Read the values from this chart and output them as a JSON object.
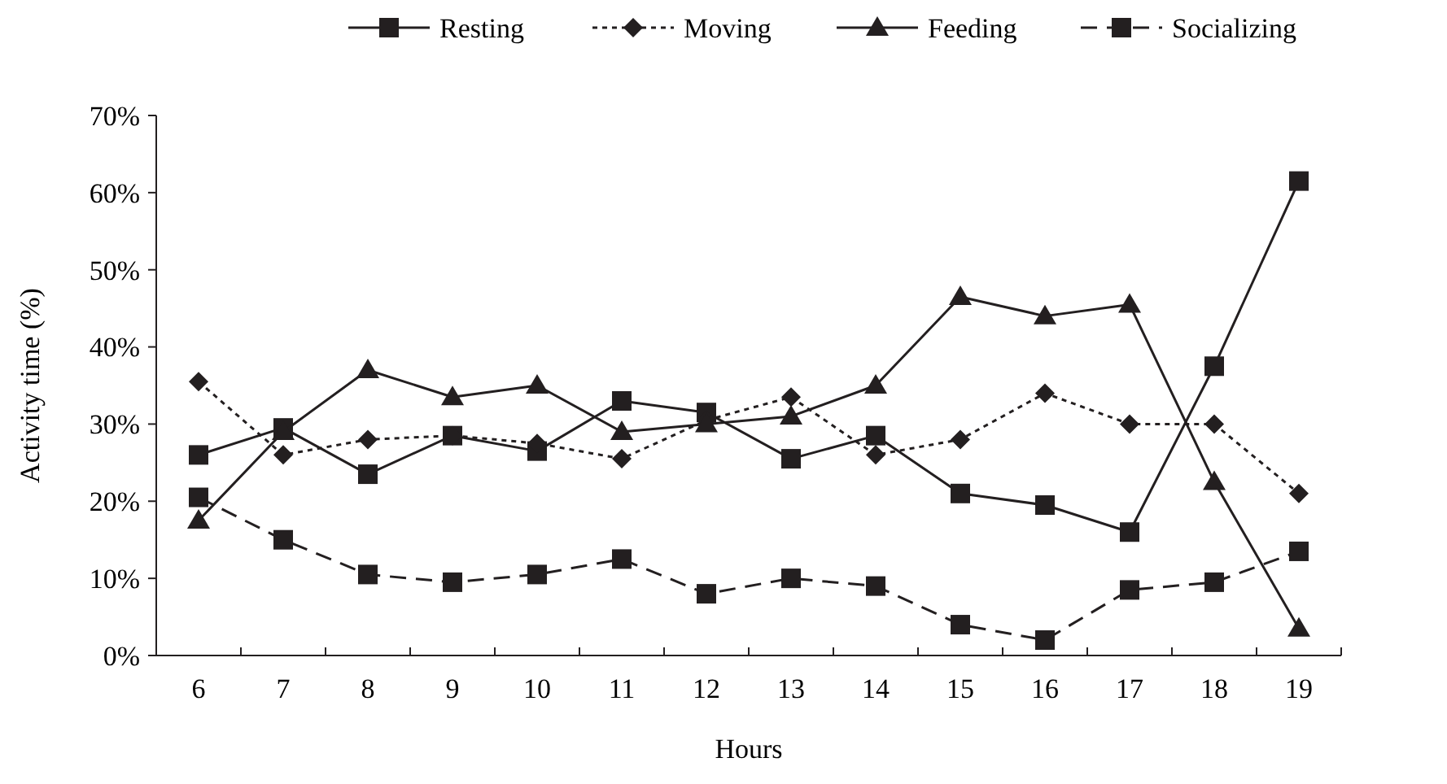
{
  "chart_data": {
    "type": "line",
    "xlabel": "Hours",
    "ylabel": "Activity time (%)",
    "categories": [
      "6",
      "7",
      "8",
      "9",
      "10",
      "11",
      "12",
      "13",
      "14",
      "15",
      "16",
      "17",
      "18",
      "19"
    ],
    "ylim": [
      0,
      70
    ],
    "yticks": [
      {
        "value": 0,
        "label": "0%"
      },
      {
        "value": 10,
        "label": "10%"
      },
      {
        "value": 20,
        "label": "20%"
      },
      {
        "value": 30,
        "label": "30%"
      },
      {
        "value": 40,
        "label": "40%"
      },
      {
        "value": 50,
        "label": "50%"
      },
      {
        "value": 60,
        "label": "60%"
      },
      {
        "value": 70,
        "label": "70%"
      }
    ],
    "grid": false,
    "legend": "top",
    "series": [
      {
        "name": "Resting",
        "color": "#231f20",
        "marker": "square",
        "line_style": "solid",
        "values": [
          26,
          29.5,
          23.5,
          28.5,
          26.5,
          33,
          31.5,
          25.5,
          28.5,
          21,
          19.5,
          16,
          37.5,
          61.5
        ]
      },
      {
        "name": "Moving",
        "color": "#231f20",
        "marker": "diamond",
        "line_style": "dotted",
        "values": [
          35.5,
          26,
          28,
          28.5,
          27.5,
          25.5,
          30.5,
          33.5,
          26,
          28,
          34,
          30,
          30,
          21
        ]
      },
      {
        "name": "Feeding",
        "color": "#231f20",
        "marker": "triangle",
        "line_style": "solid",
        "values": [
          17.5,
          29,
          37,
          33.5,
          35,
          29,
          30,
          31,
          35,
          46.5,
          44,
          45.5,
          22.5,
          3.5
        ]
      },
      {
        "name": "Socializing",
        "color": "#231f20",
        "marker": "square",
        "line_style": "dashed",
        "values": [
          20.5,
          15,
          10.5,
          9.5,
          10.5,
          12.5,
          8,
          10,
          9,
          4,
          2,
          8.5,
          9.5,
          13.5
        ]
      }
    ]
  }
}
